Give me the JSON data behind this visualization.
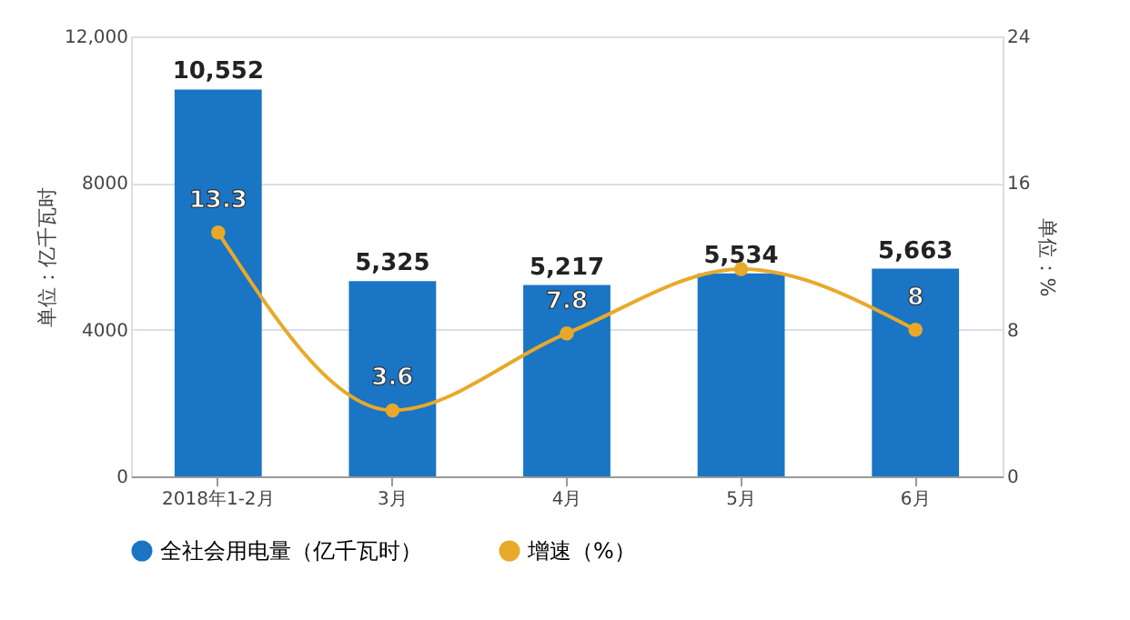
{
  "chart_data": {
    "type": "bar",
    "categories": [
      "2018年1-2月",
      "3月",
      "4月",
      "5月",
      "6月"
    ],
    "series": [
      {
        "name": "全社会用电量（亿千瓦时）",
        "color": "#1a75c4",
        "values": [
          10552,
          5325,
          5217,
          5534,
          5663
        ],
        "value_labels": [
          "10,552",
          "5,325",
          "5,217",
          "5,534",
          "5,663"
        ]
      },
      {
        "name": "增速（%）",
        "type": "line",
        "axis": "y2",
        "color": "#e8a92a",
        "marker": "circle",
        "values": [
          13.3,
          3.6,
          7.8,
          11.3,
          8
        ],
        "value_labels": [
          "13.3",
          "3.6",
          "7.8",
          null,
          "8"
        ]
      }
    ],
    "ylabel": "单位：亿千瓦时",
    "y2label": "单位：%",
    "ylim": [
      0,
      12000
    ],
    "yticks": [
      0,
      {
        "value": 4000,
        "label": "4000"
      },
      {
        "value": 8000,
        "label": "8000"
      },
      {
        "value": 12000,
        "label": "12,000"
      }
    ],
    "y2lim": [
      0,
      24
    ],
    "y2ticks": [
      0,
      8,
      16,
      24
    ],
    "grid": "y",
    "legend": "bottom"
  }
}
